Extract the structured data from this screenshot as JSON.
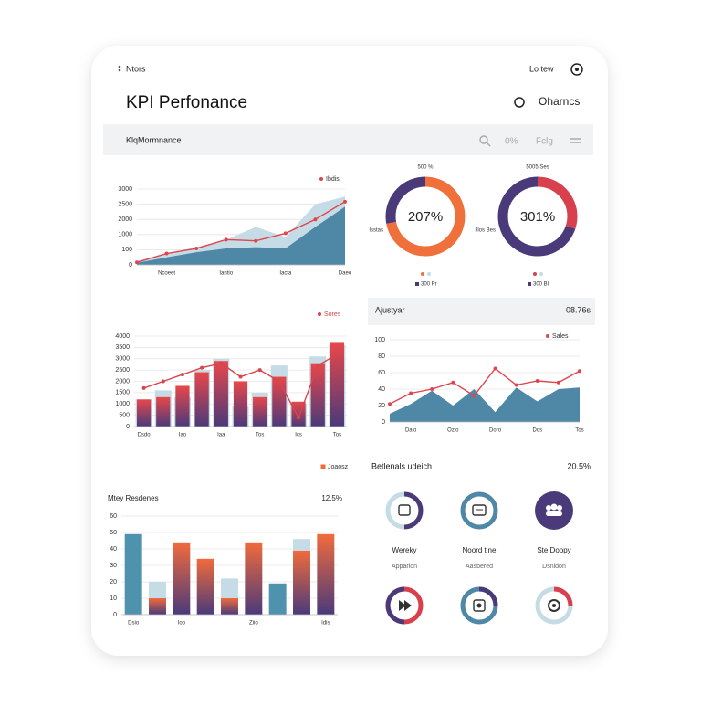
{
  "header": {
    "menu": "Ntors",
    "title": "KPI Perfonance",
    "link": "Lo tew",
    "option": "Oharncs"
  },
  "toolbar": {
    "label": "KlqMormnance",
    "percent": "0%",
    "filter": "Fclg"
  },
  "chart_data": [
    {
      "type": "area",
      "categories": [
        null,
        "Ncoeet",
        null,
        "Iantio",
        null,
        "Iacta",
        null,
        "Daeo"
      ],
      "ylim": [
        0,
        3000
      ],
      "yticks": [
        0,
        {
          "value": 600,
          "label": "100"
        },
        {
          "value": 1200,
          "label": "1000"
        },
        {
          "value": 1800,
          "label": "2000"
        },
        {
          "value": 2400,
          "label": "2500"
        },
        {
          "value": 3000,
          "label": "3000"
        }
      ],
      "grid": true,
      "series": [
        {
          "color": "#c5dbe6",
          "style": "area",
          "values": [
            150,
            450,
            700,
            1000,
            1500,
            1100,
            2400,
            2700
          ]
        },
        {
          "color": "#4f88a6",
          "style": "area",
          "values": [
            80,
            300,
            500,
            650,
            700,
            650,
            1500,
            2300
          ]
        },
        {
          "name": "Ibdis",
          "color": "#e0454c",
          "style": "line",
          "values": [
            100,
            450,
            650,
            1000,
            950,
            1250,
            1800,
            2500
          ]
        }
      ]
    },
    {
      "type": "donut",
      "center_label": "207%",
      "top_label": "500 %",
      "side_label": "Isstas",
      "legend": "300 Pr",
      "values": [
        72,
        28
      ],
      "colors": [
        "#f0703c",
        "#4a3a7a"
      ]
    },
    {
      "type": "donut",
      "center_label": "301%",
      "top_label": "5005 Ses",
      "side_label": "Illos Bes",
      "legend": "300 Bl",
      "values": [
        30,
        70
      ],
      "colors": [
        "#d8404e",
        "#4a3a7a"
      ]
    },
    {
      "type": "bar",
      "categories": [
        "Dsdo",
        null,
        "Iao",
        null,
        "Iaa",
        null,
        "Tos",
        null,
        "Ics",
        null,
        "Tos"
      ],
      "ylim": [
        0,
        4000
      ],
      "yticks": [
        0,
        500,
        1000,
        1500,
        2000,
        2500,
        3000,
        3500,
        4000
      ],
      "grid": true,
      "series": [
        {
          "color": "#c5dbe6",
          "values": [
            1200,
            1600,
            1300,
            2500,
            3000,
            900,
            1500,
            2700,
            1000,
            3100,
            3600
          ]
        },
        {
          "color": "#e8474a",
          "color_bottom": "#4a3a7a",
          "values": [
            1200,
            1300,
            1800,
            2400,
            2900,
            2000,
            1300,
            2200,
            1100,
            2800,
            3700
          ]
        },
        {
          "name": "Sores",
          "color": "#d9434a",
          "style": "line",
          "values": [
            1700,
            2000,
            2300,
            2600,
            2800,
            2200,
            2500,
            2000,
            400,
            2700,
            3200
          ]
        }
      ]
    },
    {
      "type": "area",
      "title": "Ajustyar",
      "subtitle": "08.76s",
      "categories": [
        null,
        "Daio",
        null,
        "Ozio",
        null,
        "Doro",
        null,
        "Dos",
        null,
        "Tos"
      ],
      "ylim": [
        0,
        100
      ],
      "yticks": [
        0,
        20,
        40,
        60,
        80,
        100
      ],
      "grid": true,
      "series": [
        {
          "color": "#4f88a6",
          "style": "area",
          "values": [
            10,
            22,
            38,
            20,
            40,
            12,
            42,
            25,
            40,
            42
          ]
        },
        {
          "name": "Sales",
          "color": "#e0454c",
          "style": "line",
          "values": [
            22,
            35,
            40,
            48,
            32,
            65,
            45,
            50,
            48,
            62
          ]
        }
      ]
    },
    {
      "type": "bar",
      "title": "Mtey Resdenes",
      "subtitle": "12.5%",
      "categories": [
        "Dsio",
        null,
        "Ioo",
        null,
        null,
        "Ziio",
        null,
        null,
        "Idis"
      ],
      "ylim": [
        0,
        60
      ],
      "yticks": [
        0,
        10,
        20,
        30,
        40,
        50,
        60
      ],
      "grid": true,
      "series": [
        {
          "color": "#4f92ad",
          "values": [
            49,
            null,
            null,
            null,
            null,
            null,
            19,
            null,
            null
          ]
        },
        {
          "name": "Joaosz",
          "color": "#f06b3c",
          "color_bottom": "#4a3a7a",
          "values": [
            null,
            10,
            44,
            34,
            10,
            44,
            null,
            39,
            49
          ]
        },
        {
          "color": "#c5dbe6",
          "stack_on": 1,
          "values": [
            null,
            10,
            null,
            null,
            12,
            null,
            null,
            7,
            null
          ]
        }
      ]
    }
  ],
  "icons": {
    "title": "Betlenals udeich",
    "value": "20.5%",
    "items": [
      {
        "label": "Wereky",
        "sub": "Apparion"
      },
      {
        "label": "Noord tine",
        "sub": "Aasbered"
      },
      {
        "label": "Ste Doppy",
        "sub": "Dsnidon"
      }
    ]
  }
}
